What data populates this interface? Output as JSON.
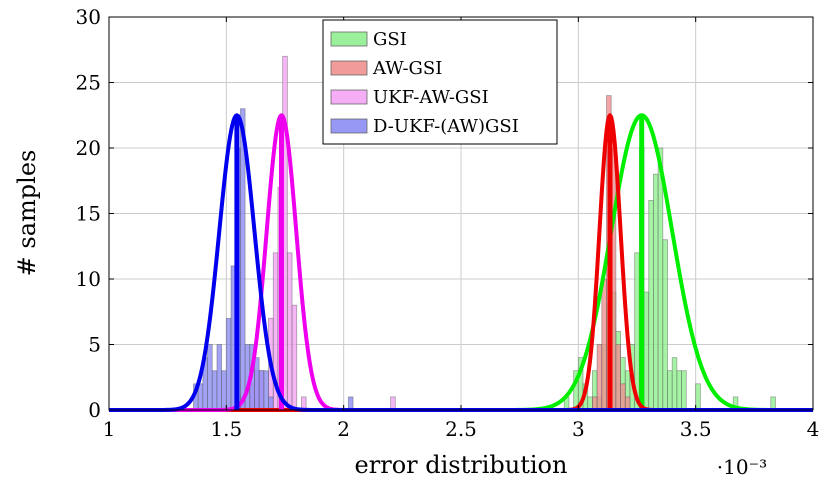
{
  "chart_data": {
    "type": "histogram",
    "xlabel": "error distribution",
    "ylabel": "# samples",
    "x_scale_label": "·10⁻³",
    "xlim": [
      1,
      4
    ],
    "ylim": [
      0,
      30
    ],
    "x_ticks": [
      1,
      1.5,
      2,
      2.5,
      3,
      3.5,
      4
    ],
    "x_tick_labels": [
      "1",
      "1.5",
      "2",
      "2.5",
      "3",
      "3.5",
      "4"
    ],
    "y_ticks": [
      0,
      5,
      10,
      15,
      20,
      25,
      30
    ],
    "y_tick_labels": [
      "0",
      "5",
      "10",
      "15",
      "20",
      "25",
      "30"
    ],
    "grid": true,
    "legend_position": "top-center",
    "series": [
      {
        "name": "GSI",
        "fill": "#90f090",
        "line": "#00ee00",
        "bin_width": 0.02,
        "bins": [
          [
            2.94,
            1
          ],
          [
            2.98,
            3
          ],
          [
            3.0,
            4
          ],
          [
            3.02,
            2
          ],
          [
            3.04,
            1
          ],
          [
            3.06,
            3
          ],
          [
            3.08,
            1
          ],
          [
            3.1,
            5
          ],
          [
            3.12,
            8
          ],
          [
            3.14,
            9
          ],
          [
            3.16,
            6
          ],
          [
            3.18,
            4
          ],
          [
            3.2,
            3
          ],
          [
            3.22,
            5
          ],
          [
            3.24,
            12
          ],
          [
            3.26,
            20
          ],
          [
            3.28,
            9
          ],
          [
            3.3,
            16
          ],
          [
            3.32,
            18
          ],
          [
            3.34,
            20
          ],
          [
            3.36,
            13
          ],
          [
            3.38,
            3
          ],
          [
            3.4,
            4
          ],
          [
            3.42,
            3
          ],
          [
            3.44,
            3
          ],
          [
            3.5,
            2
          ],
          [
            3.66,
            1
          ],
          [
            3.82,
            1
          ]
        ],
        "fit_mean": 3.27,
        "fit_std": 0.13,
        "fit_peak": 22.5
      },
      {
        "name": "AW-GSI",
        "fill": "#f09090",
        "line": "#ee0000",
        "bin_width": 0.02,
        "bins": [
          [
            3.06,
            1
          ],
          [
            3.08,
            5
          ],
          [
            3.1,
            10
          ],
          [
            3.12,
            24
          ],
          [
            3.14,
            20
          ],
          [
            3.16,
            5
          ],
          [
            3.18,
            2
          ],
          [
            3.2,
            1
          ]
        ],
        "fit_mean": 3.135,
        "fit_std": 0.045,
        "fit_peak": 22.5
      },
      {
        "name": "UKF-AW-GSI",
        "fill": "#f4a4f4",
        "line": "#ee00ee",
        "bin_width": 0.02,
        "bins": [
          [
            1.56,
            1
          ],
          [
            1.6,
            2
          ],
          [
            1.62,
            3
          ],
          [
            1.64,
            3
          ],
          [
            1.68,
            7
          ],
          [
            1.7,
            12
          ],
          [
            1.72,
            17
          ],
          [
            1.74,
            27
          ],
          [
            1.76,
            12
          ],
          [
            1.78,
            8
          ],
          [
            1.82,
            1
          ],
          [
            2.2,
            1
          ]
        ],
        "fit_mean": 1.735,
        "fit_std": 0.063,
        "fit_peak": 22.5
      },
      {
        "name": "D-UKF-(AW)GSI",
        "fill": "#8c8cf4",
        "line": "#0000ee",
        "bin_width": 0.02,
        "bins": [
          [
            1.36,
            2
          ],
          [
            1.38,
            2
          ],
          [
            1.4,
            4
          ],
          [
            1.42,
            5
          ],
          [
            1.44,
            3
          ],
          [
            1.46,
            5
          ],
          [
            1.48,
            3
          ],
          [
            1.5,
            7
          ],
          [
            1.52,
            11
          ],
          [
            1.54,
            20
          ],
          [
            1.56,
            23
          ],
          [
            1.58,
            5
          ],
          [
            1.6,
            5
          ],
          [
            1.62,
            4
          ],
          [
            1.64,
            3
          ],
          [
            1.66,
            3
          ],
          [
            1.68,
            1
          ],
          [
            2.02,
            1
          ]
        ],
        "fit_mean": 1.545,
        "fit_std": 0.075,
        "fit_peak": 22.5
      }
    ]
  }
}
